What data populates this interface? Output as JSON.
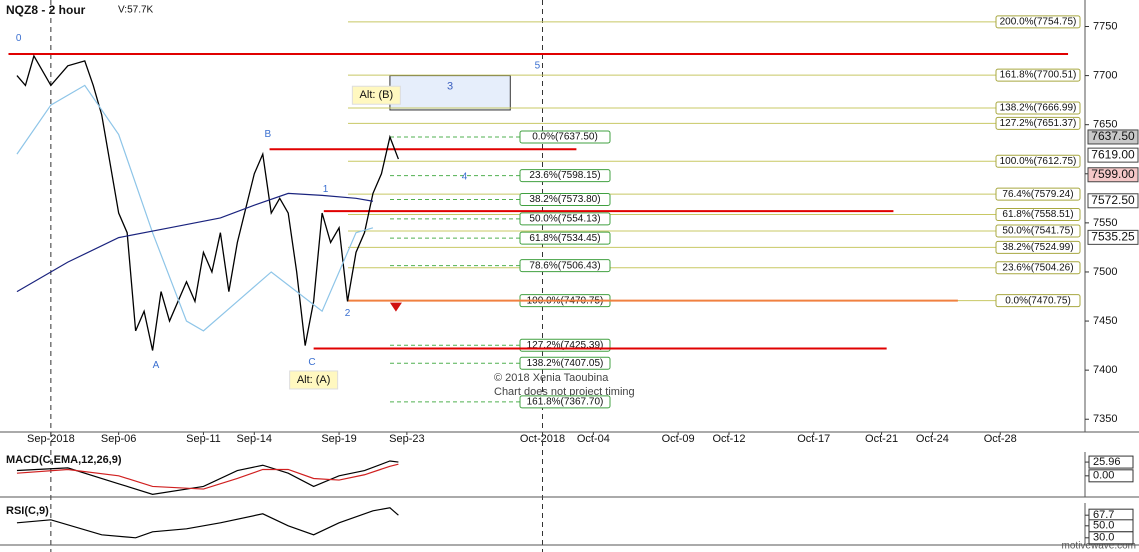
{
  "header": {
    "symbol": "NQZ8 - 2 hour",
    "volume": "V:57.7K",
    "watermark": "motivewave.com",
    "notes": [
      "© 2018 Xenia Taoubina",
      "Chart does not project timing"
    ]
  },
  "chart_data": [
    {
      "type": "line",
      "xlim": [
        -1,
        63
      ],
      "xticks": [
        {
          "value": 2,
          "label": "Sep-2018"
        },
        {
          "value": 6,
          "label": "Sep-06"
        },
        {
          "value": 11,
          "label": "Sep-11"
        },
        {
          "value": 14,
          "label": "Sep-14"
        },
        {
          "value": 19,
          "label": "Sep-19"
        },
        {
          "value": 23,
          "label": "Sep-23"
        },
        {
          "value": 31,
          "label": "Oct-2018"
        },
        {
          "value": 34,
          "label": "Oct-04"
        },
        {
          "value": 39,
          "label": "Oct-09"
        },
        {
          "value": 42,
          "label": "Oct-12"
        },
        {
          "value": 47,
          "label": "Oct-17"
        },
        {
          "value": 51,
          "label": "Oct-21"
        },
        {
          "value": 54,
          "label": "Oct-24"
        },
        {
          "value": 58,
          "label": "Oct-28"
        }
      ],
      "ylim": [
        7337,
        7777
      ],
      "yticks": [
        7350,
        7400,
        7450,
        7500,
        7550,
        7600,
        7650,
        7700,
        7750
      ],
      "series": [
        {
          "color": "#000000",
          "x": [
            0,
            0.5,
            1,
            2,
            3,
            4,
            4.5,
            5,
            6,
            6.5,
            7,
            7.5,
            8,
            8.5,
            9,
            10,
            10.5,
            11,
            11.5,
            12,
            12.5,
            13,
            14,
            14.5,
            15,
            15.5,
            16,
            16.5,
            17,
            17.5,
            18,
            18.5,
            19,
            19.5,
            20,
            20.5,
            21,
            21.5,
            22,
            22.5
          ],
          "values": [
            7700,
            7690,
            7720,
            7690,
            7710,
            7715,
            7690,
            7660,
            7560,
            7540,
            7440,
            7460,
            7420,
            7480,
            7450,
            7490,
            7470,
            7520,
            7500,
            7540,
            7480,
            7530,
            7600,
            7620,
            7560,
            7575,
            7560,
            7500,
            7425,
            7470,
            7560,
            7530,
            7545,
            7470,
            7520,
            7540,
            7580,
            7600,
            7637.5,
            7615
          ]
        },
        {
          "color": "#8ec5e8",
          "x": [
            0,
            2,
            4,
            6,
            8,
            10,
            11,
            13,
            15,
            16.5,
            18,
            19,
            20,
            21
          ],
          "values": [
            7620,
            7670,
            7690,
            7640,
            7540,
            7450,
            7440,
            7470,
            7500,
            7480,
            7460,
            7500,
            7540,
            7545
          ]
        },
        {
          "color": "#1a237e",
          "x": [
            0,
            3,
            6,
            9,
            12,
            14,
            16,
            18,
            20,
            21
          ],
          "values": [
            7480,
            7510,
            7535,
            7545,
            7555,
            7568,
            7580,
            7578,
            7575,
            7572
          ]
        }
      ],
      "price_tags": [
        {
          "value": 7637.5,
          "label": "7637.50",
          "color": "#c8c8c8"
        },
        {
          "value": 7619,
          "label": "7619.00",
          "color": "#ffffff"
        },
        {
          "value": 7599,
          "label": "7599.00",
          "color": "#f4c7c7"
        },
        {
          "value": 7572.5,
          "label": "7572.50",
          "color": "#ffffff"
        },
        {
          "value": 7535.25,
          "label": "7535.25",
          "color": "#ffffff"
        }
      ],
      "levels": [
        {
          "value": 7722,
          "from": -0.5,
          "to": 62,
          "color": "#e00000"
        },
        {
          "value": 7625,
          "from": 14.9,
          "to": 33,
          "color": "#e00000"
        },
        {
          "value": 7562,
          "from": 18.1,
          "to": 51.7,
          "color": "#e00000"
        },
        {
          "value": 7470.75,
          "from": 19.5,
          "to": 55.5,
          "color": "#f08040"
        },
        {
          "value": 7422,
          "from": 17.5,
          "to": 51.3,
          "color": "#e00000"
        }
      ],
      "zone": {
        "label": "3",
        "x": [
          22,
          29.1
        ],
        "y": [
          7665,
          7700
        ]
      },
      "fib_retrace": [
        {
          "value": 7637.5,
          "label": "0.0%(7637.50)"
        },
        {
          "value": 7598.15,
          "label": "23.6%(7598.15)"
        },
        {
          "value": 7573.8,
          "label": "38.2%(7573.80)"
        },
        {
          "value": 7554.13,
          "label": "50.0%(7554.13)"
        },
        {
          "value": 7534.45,
          "label": "61.8%(7534.45)"
        },
        {
          "value": 7506.43,
          "label": "78.6%(7506.43)"
        },
        {
          "value": 7470.75,
          "label": "100.0%(7470.75)"
        },
        {
          "value": 7425.39,
          "label": "127.2%(7425.39)"
        },
        {
          "value": 7407.05,
          "label": "138.2%(7407.05)"
        },
        {
          "value": 7367.7,
          "label": "161.8%(7367.70)"
        }
      ],
      "fib_extension": [
        {
          "value": 7754.75,
          "label": "200.0%(7754.75)"
        },
        {
          "value": 7700.51,
          "label": "161.8%(7700.51)"
        },
        {
          "value": 7666.99,
          "label": "138.2%(7666.99)"
        },
        {
          "value": 7651.37,
          "label": "127.2%(7651.37)"
        },
        {
          "value": 7612.75,
          "label": "100.0%(7612.75)"
        },
        {
          "value": 7579.24,
          "label": "76.4%(7579.24)"
        },
        {
          "value": 7558.51,
          "label": "61.8%(7558.51)"
        },
        {
          "value": 7541.75,
          "label": "50.0%(7541.75)"
        },
        {
          "value": 7524.99,
          "label": "38.2%(7524.99)"
        },
        {
          "value": 7504.26,
          "label": "23.6%(7504.26)"
        },
        {
          "value": 7470.75,
          "label": "0.0%(7470.75)"
        }
      ],
      "annotations": [
        {
          "text": "0",
          "x": 0.1,
          "y": 7738,
          "style": "wave"
        },
        {
          "text": "A",
          "x": 8.2,
          "y": 7405,
          "style": "wave"
        },
        {
          "text": "B",
          "x": 14.8,
          "y": 7640,
          "style": "wave"
        },
        {
          "text": "C",
          "x": 17.4,
          "y": 7408,
          "style": "wave"
        },
        {
          "text": "1",
          "x": 18.2,
          "y": 7584,
          "style": "wave"
        },
        {
          "text": "2",
          "x": 19.5,
          "y": 7458,
          "style": "wave"
        },
        {
          "text": "4",
          "x": 26.4,
          "y": 7597,
          "style": "wave"
        },
        {
          "text": "5",
          "x": 30.7,
          "y": 7710,
          "style": "wave"
        },
        {
          "text": "Alt: (B)",
          "x": 21.2,
          "y": 7680,
          "style": "callout"
        },
        {
          "text": "Alt: (A)",
          "x": 17.5,
          "y": 7390,
          "style": "callout"
        }
      ]
    },
    {
      "type": "line",
      "title": "MACD(C,EMA,12,26,9)",
      "ylim": [
        -40,
        45
      ],
      "yticks": [
        25.96,
        {
          "value": 0,
          "label": "0.00"
        }
      ],
      "series": [
        {
          "color": "#000000",
          "x": [
            0,
            3,
            6,
            8,
            11,
            13,
            14.5,
            16,
            17.5,
            19,
            20.5,
            22,
            22.5
          ],
          "values": [
            10,
            15,
            -15,
            -35,
            -20,
            10,
            20,
            5,
            -20,
            0,
            10,
            28,
            25.96
          ]
        },
        {
          "color": "#d02020",
          "x": [
            0,
            3,
            6,
            8,
            11,
            13,
            14.5,
            16,
            17.5,
            19,
            20.5,
            22,
            22.5
          ],
          "values": [
            5,
            12,
            0,
            -20,
            -25,
            -5,
            12,
            12,
            -5,
            -8,
            2,
            18,
            22
          ]
        }
      ]
    },
    {
      "type": "line",
      "title": "RSI(C,9)",
      "ylim": [
        18,
        88
      ],
      "yticks": [
        67.7,
        {
          "value": 50,
          "label": "50.0"
        },
        {
          "value": 30,
          "label": "30.0"
        }
      ],
      "series": [
        {
          "color": "#000000",
          "x": [
            0,
            2,
            5,
            7,
            8,
            10,
            12,
            14.5,
            16,
            17.5,
            19,
            21,
            22,
            22.5
          ],
          "values": [
            55,
            60,
            35,
            30,
            40,
            45,
            55,
            70,
            50,
            35,
            55,
            75,
            80,
            67.7
          ]
        }
      ]
    }
  ]
}
